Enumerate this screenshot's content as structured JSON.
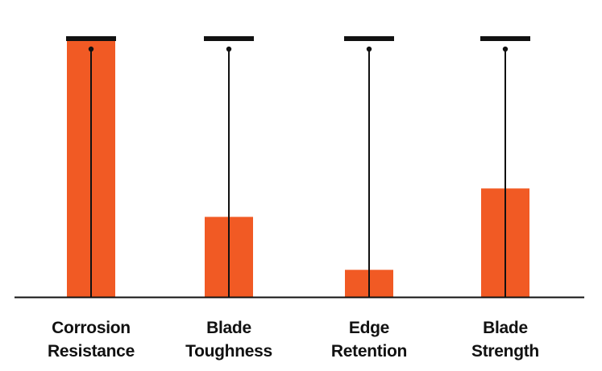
{
  "chart_data": {
    "type": "bar",
    "title": "",
    "xlabel": "",
    "ylabel": "",
    "ylim": [
      0,
      100
    ],
    "grid": false,
    "legend": "none",
    "categories": [
      [
        "Corrosion",
        "Resistance"
      ],
      [
        "Blade",
        "Toughness"
      ],
      [
        "Edge",
        "Retention"
      ],
      [
        "Blade",
        "Strength"
      ]
    ],
    "values": [
      100,
      31,
      10.5,
      42
    ],
    "max_markers": [
      100,
      100,
      100,
      100
    ],
    "colors": {
      "bar": "#F15A24",
      "marker": "#111111",
      "axis": "#111111"
    }
  }
}
